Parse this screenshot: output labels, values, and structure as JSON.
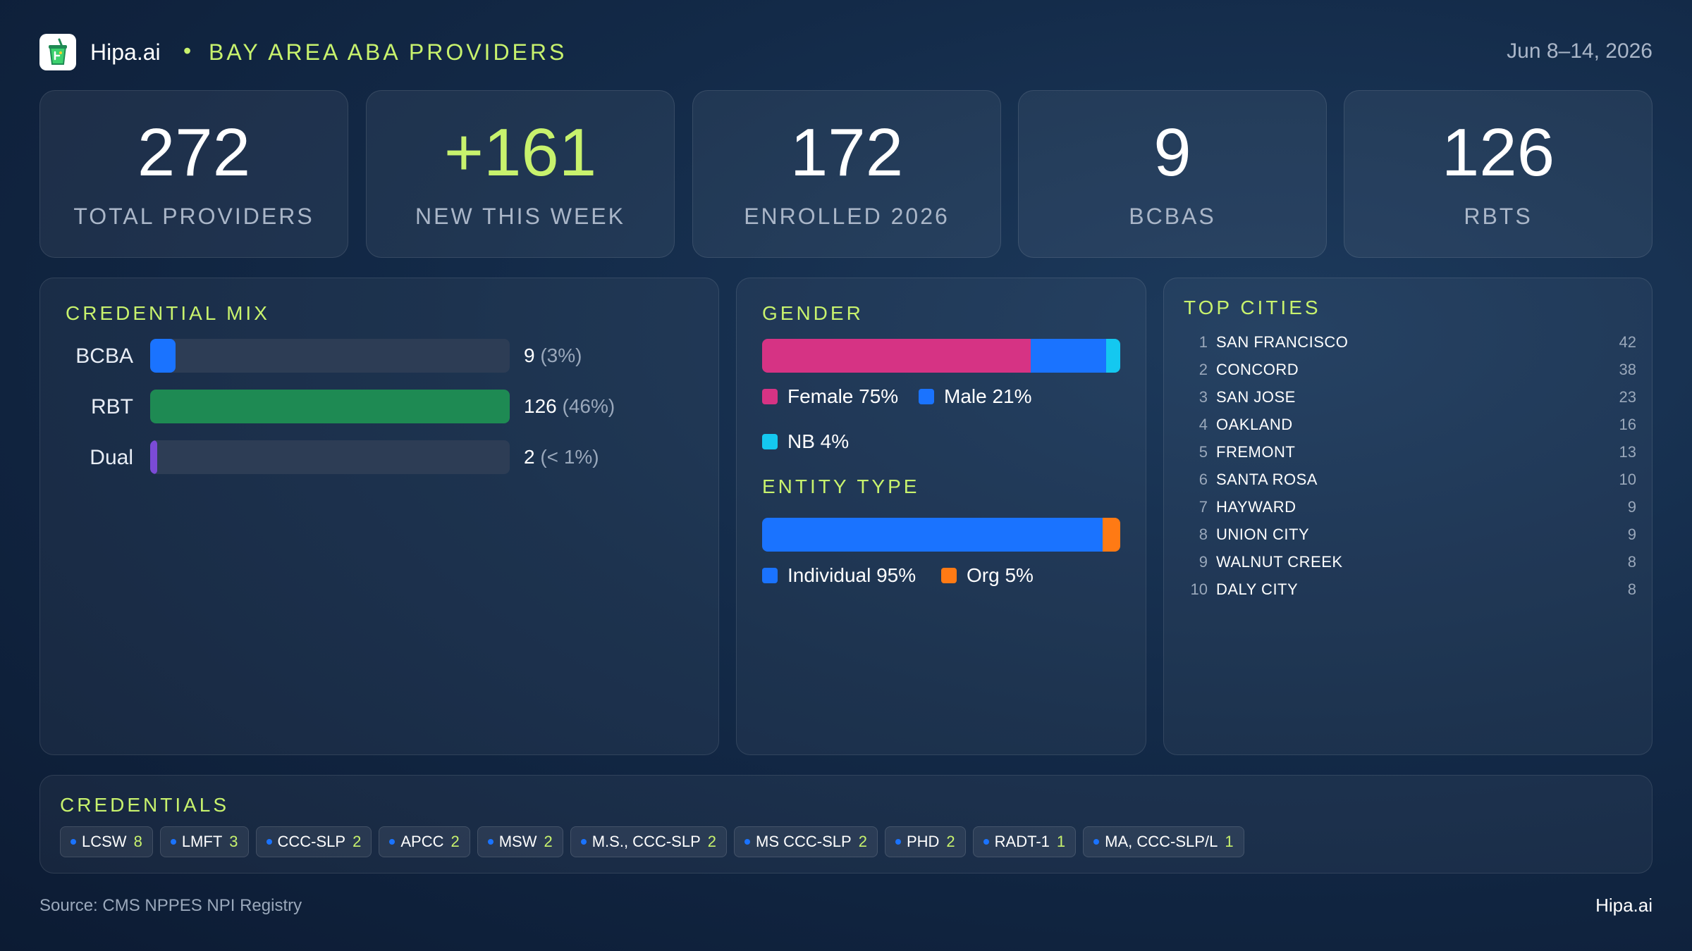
{
  "header": {
    "brand": "Hipa.ai",
    "separator": "•",
    "title": "BAY AREA ABA PROVIDERS",
    "date": "Jun 8–14, 2026",
    "logo_icon": "cup-icon"
  },
  "kpis": [
    {
      "value": "272",
      "label": "TOTAL  PROVIDERS",
      "highlight": false
    },
    {
      "value": "+161",
      "label": "NEW THIS WEEK",
      "highlight": true
    },
    {
      "value": "172",
      "label": "ENROLLED 2026",
      "highlight": false
    },
    {
      "value": "9",
      "label": "BCBAS",
      "highlight": false
    },
    {
      "value": "126",
      "label": "RBTS",
      "highlight": false
    }
  ],
  "credential_mix": {
    "title": "CREDENTIAL MIX",
    "rows": [
      {
        "label": "BCBA",
        "count": "9",
        "pct": "(3%)",
        "value": 9,
        "color": "#1a73ff"
      },
      {
        "label": "RBT",
        "count": "126",
        "pct": "(46%)",
        "value": 126,
        "color": "#1e8a53"
      },
      {
        "label": "Dual",
        "count": "2",
        "pct": "(< 1%)",
        "value": 2,
        "color": "#7b4bd6"
      }
    ]
  },
  "gender": {
    "title": "GENDER",
    "segments": [
      {
        "name": "Female",
        "value": 75,
        "label": "Female 75%",
        "color": "#d63384"
      },
      {
        "name": "Male",
        "value": 21,
        "label": "Male 21%",
        "color": "#1a73ff"
      },
      {
        "name": "NB",
        "value": 4,
        "label": "NB 4%",
        "color": "#14c8f0"
      }
    ]
  },
  "entity_type": {
    "title": "ENTITY TYPE",
    "segments": [
      {
        "name": "Individual",
        "value": 95,
        "label": "Individual 95%",
        "color": "#1a73ff"
      },
      {
        "name": "Org",
        "value": 5,
        "label": "Org 5%",
        "color": "#ff7a14"
      }
    ]
  },
  "top_cities": {
    "title": "TOP CITIES",
    "rows": [
      {
        "rank": "1",
        "name": "SAN FRANCISCO",
        "count": "42"
      },
      {
        "rank": "2",
        "name": "CONCORD",
        "count": "38"
      },
      {
        "rank": "3",
        "name": "SAN JOSE",
        "count": "23"
      },
      {
        "rank": "4",
        "name": "OAKLAND",
        "count": "16"
      },
      {
        "rank": "5",
        "name": "FREMONT",
        "count": "13"
      },
      {
        "rank": "6",
        "name": "SANTA ROSA",
        "count": "10"
      },
      {
        "rank": "7",
        "name": "HAYWARD",
        "count": "9"
      },
      {
        "rank": "8",
        "name": "UNION CITY",
        "count": "9"
      },
      {
        "rank": "9",
        "name": "WALNUT CREEK",
        "count": "8"
      },
      {
        "rank": "10",
        "name": "DALY CITY",
        "count": "8"
      }
    ]
  },
  "credentials": {
    "title": "CREDENTIALS",
    "chips": [
      {
        "name": "LCSW",
        "count": "8"
      },
      {
        "name": "LMFT",
        "count": "3"
      },
      {
        "name": "CCC-SLP",
        "count": "2"
      },
      {
        "name": "APCC",
        "count": "2"
      },
      {
        "name": "MSW",
        "count": "2"
      },
      {
        "name": "M.S., CCC-SLP",
        "count": "2"
      },
      {
        "name": "MS CCC-SLP",
        "count": "2"
      },
      {
        "name": "PHD",
        "count": "2"
      },
      {
        "name": "RADT-1",
        "count": "1"
      },
      {
        "name": "MA, CCC-SLP/L",
        "count": "1"
      }
    ]
  },
  "footer": {
    "source": "Source: CMS NPPES NPI Registry",
    "brand": "Hipa.ai"
  },
  "chart_data": [
    {
      "type": "bar",
      "title": "CREDENTIAL MIX",
      "orientation": "horizontal",
      "categories": [
        "BCBA",
        "RBT",
        "Dual"
      ],
      "values": [
        9,
        126,
        2
      ],
      "data_labels": [
        "9 (3%)",
        "126 (46%)",
        "2 (< 1%)"
      ],
      "xlim": [
        0,
        126
      ]
    },
    {
      "type": "bar",
      "title": "GENDER",
      "stacked": true,
      "categories": [
        "Female",
        "Male",
        "NB"
      ],
      "values": [
        75,
        21,
        4
      ]
    },
    {
      "type": "bar",
      "title": "ENTITY TYPE",
      "stacked": true,
      "categories": [
        "Individual",
        "Org"
      ],
      "values": [
        95,
        5
      ]
    },
    {
      "type": "table",
      "title": "TOP CITIES",
      "categories": [
        "SAN FRANCISCO",
        "CONCORD",
        "SAN JOSE",
        "OAKLAND",
        "FREMONT",
        "SANTA ROSA",
        "HAYWARD",
        "UNION CITY",
        "WALNUT CREEK",
        "DALY CITY"
      ],
      "values": [
        42,
        38,
        23,
        16,
        13,
        10,
        9,
        9,
        8,
        8
      ]
    }
  ]
}
